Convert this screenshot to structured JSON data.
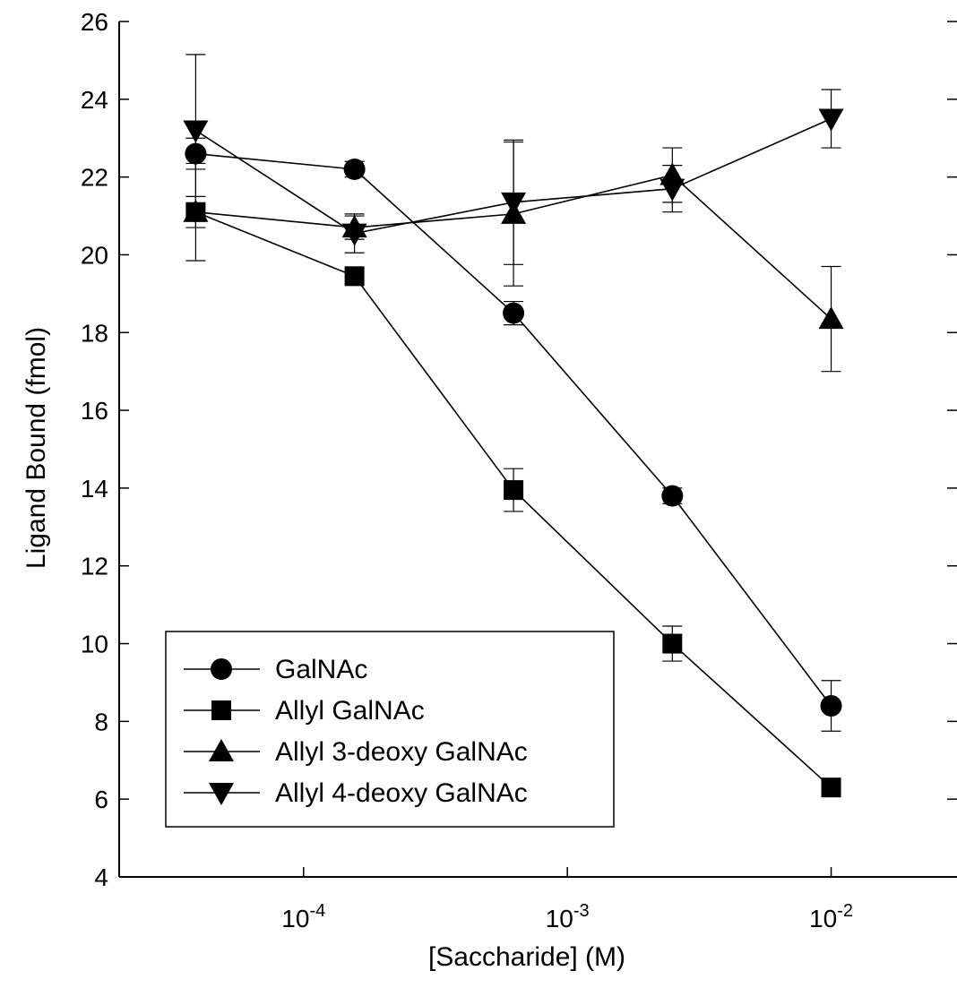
{
  "chart_data": {
    "type": "scatter",
    "title": "",
    "xlabel": "[Saccharide] (M)",
    "ylabel": "Ligand Bound (fmol)",
    "xscale": "log",
    "xlim": [
      2e-05,
      0.03
    ],
    "ylim": [
      4,
      26
    ],
    "yticks": [
      4,
      6,
      8,
      10,
      12,
      14,
      16,
      18,
      20,
      22,
      24,
      26
    ],
    "xticks": [
      {
        "value": 0.0001,
        "base": "10",
        "exp": "-4"
      },
      {
        "value": 0.001,
        "base": "10",
        "exp": "-3"
      },
      {
        "value": 0.01,
        "base": "10",
        "exp": "-2"
      }
    ],
    "grid": false,
    "legend_position": "bottom-left",
    "x": [
      3.9e-05,
      0.000156,
      0.000625,
      0.0025,
      0.01
    ],
    "series": [
      {
        "name": "GalNAc",
        "marker": "circle",
        "values": [
          22.6,
          22.2,
          18.5,
          13.8,
          8.4
        ],
        "errors": [
          0.4,
          0.2,
          0.3,
          0.2,
          0.65
        ]
      },
      {
        "name": "Allyl GalNAc",
        "marker": "square",
        "values": [
          21.1,
          19.45,
          13.95,
          10.0,
          6.3
        ],
        "errors": [
          0.4,
          0.2,
          0.55,
          0.45,
          0.2
        ]
      },
      {
        "name": "Allyl 3-deoxy GalNAc",
        "marker": "triangle-up",
        "values": [
          21.1,
          20.7,
          21.05,
          22.05,
          18.35
        ],
        "errors": [
          1.25,
          0.3,
          1.85,
          0.7,
          1.35
        ]
      },
      {
        "name": "Allyl 4-deoxy GalNAc",
        "marker": "triangle-down",
        "values": [
          23.2,
          20.55,
          21.35,
          21.7,
          23.5
        ],
        "errors": [
          1.95,
          0.5,
          1.6,
          0.6,
          0.75
        ]
      }
    ]
  }
}
